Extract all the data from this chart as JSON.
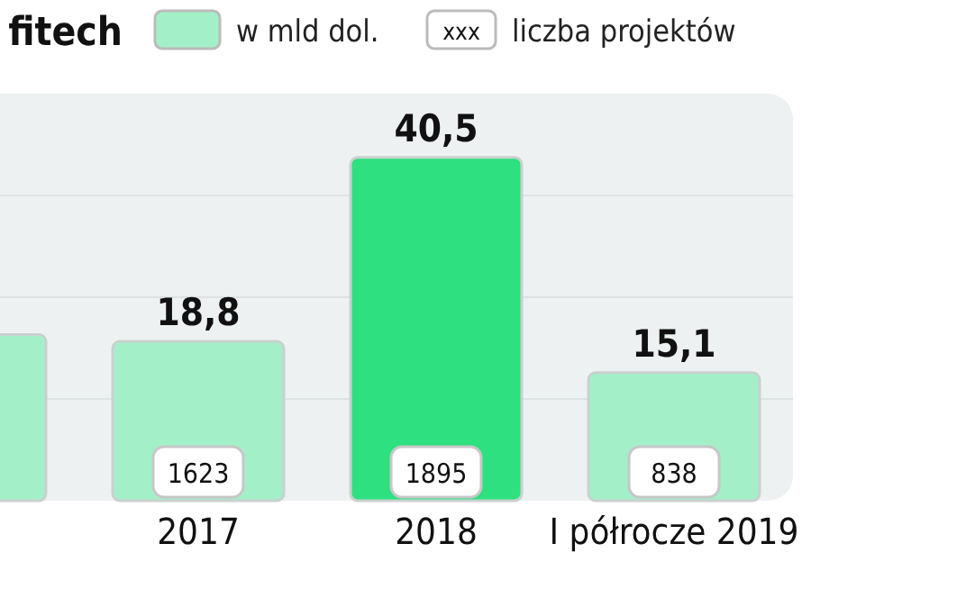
{
  "chart_data": {
    "type": "bar",
    "title": "fitech",
    "categories": [
      null,
      "2017",
      "2018",
      "I półrocze 2019"
    ],
    "series": [
      {
        "name": "w mld dol.",
        "color": "#a3f0c8",
        "colors": [
          "#a3f0c8",
          "#a3f0c8",
          "#2ee07f",
          "#a3f0c8"
        ],
        "values": [
          19.6,
          18.8,
          40.5,
          15.1
        ],
        "value_labels": [
          null,
          "18,8",
          "40,5",
          "15,1"
        ]
      }
    ],
    "ylim": [
      0,
      48
    ],
    "yticks": [
      {
        "value": 12,
        "label": null
      },
      {
        "value": 24,
        "label": null
      },
      {
        "value": 36,
        "label": null
      }
    ],
    "grid": "y",
    "tick_labels": "x",
    "legend": "top",
    "annotations": [
      "xxx",
      "liczba projektów",
      {
        "text": "1623",
        "x": "2017",
        "y": 0
      },
      {
        "text": "1895",
        "x": "2018",
        "y": 0
      },
      {
        "text": "838",
        "x": "I półrocze 2019",
        "y": 0
      }
    ]
  }
}
